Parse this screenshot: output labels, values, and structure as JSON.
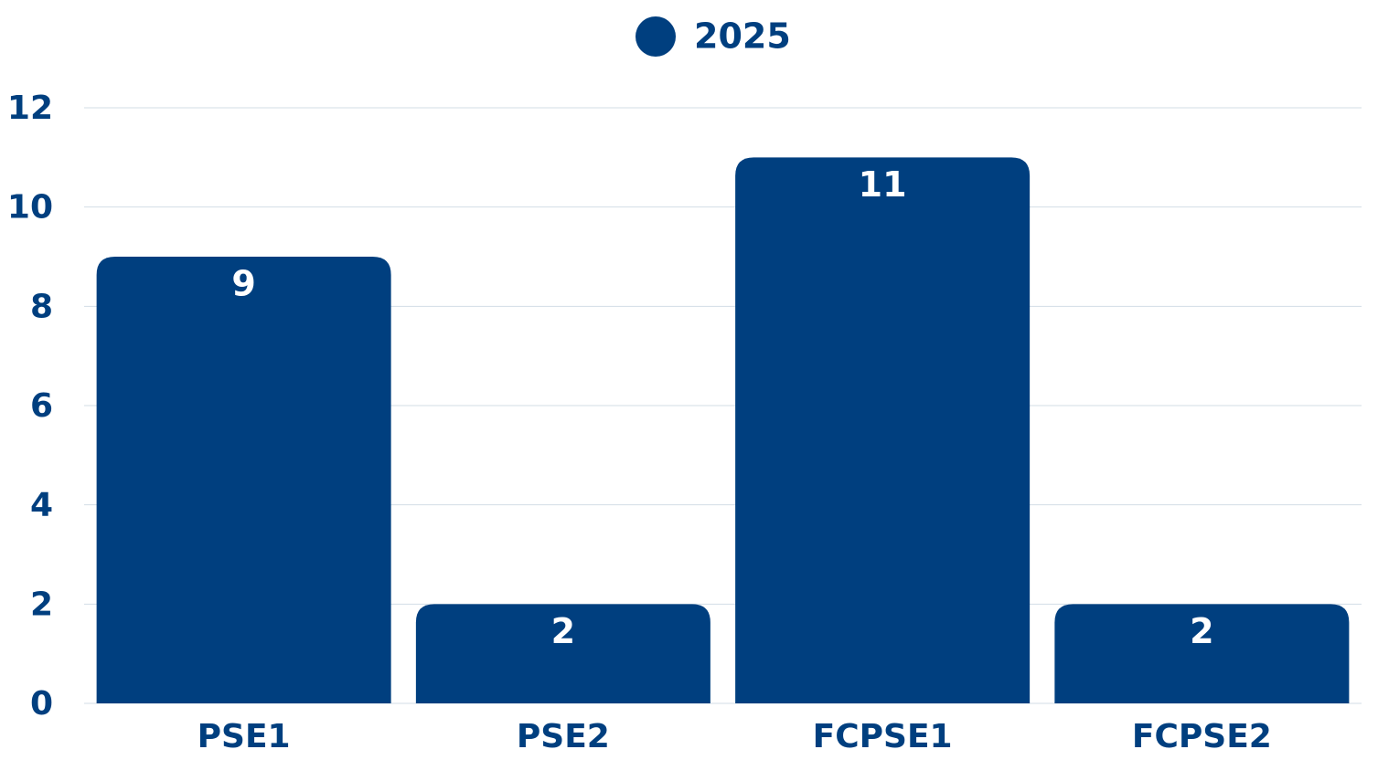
{
  "chart_data": {
    "type": "bar",
    "categories": [
      "PSE1",
      "PSE2",
      "FCPSE1",
      "FCPSE2"
    ],
    "series": [
      {
        "name": "2025",
        "color": "#003f7f",
        "values": [
          9,
          2,
          11,
          2
        ]
      }
    ],
    "ylim": [
      0,
      12
    ],
    "yticks": [
      0,
      2,
      4,
      6,
      8,
      10,
      12
    ],
    "grid": true,
    "legend": "top"
  }
}
